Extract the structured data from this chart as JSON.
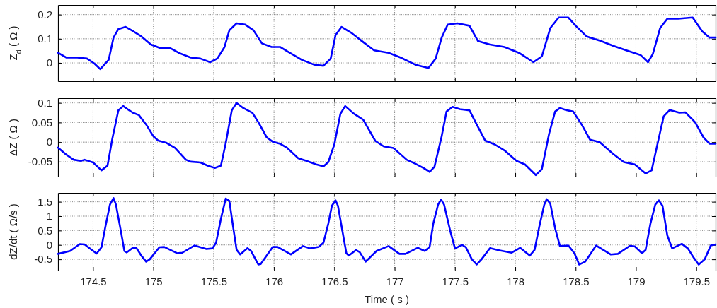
{
  "chart_data": [
    {
      "type": "line",
      "ylabel": "Z$_{d}$ ( Ω )",
      "color": "#0000ff",
      "grid": true,
      "tick_labels": "y",
      "xlim": [
        174.21,
        179.66
      ],
      "xticks": [
        174.5,
        175,
        175.5,
        176,
        176.5,
        177,
        177.5,
        178,
        178.5,
        179,
        179.5
      ],
      "ylim": [
        -0.076,
        0.24
      ],
      "yticks": [
        0,
        0.1,
        0.2
      ],
      "x": [
        174.21,
        174.28,
        174.37,
        174.45,
        174.51,
        174.56,
        174.63,
        174.67,
        174.71,
        174.77,
        174.82,
        174.9,
        174.98,
        175.06,
        175.14,
        175.21,
        175.31,
        175.39,
        175.47,
        175.53,
        175.59,
        175.63,
        175.69,
        175.76,
        175.83,
        175.9,
        175.98,
        176.05,
        176.13,
        176.23,
        176.33,
        176.41,
        176.47,
        176.51,
        176.56,
        176.64,
        176.74,
        176.83,
        176.95,
        177.05,
        177.17,
        177.28,
        177.34,
        177.39,
        177.44,
        177.52,
        177.62,
        177.69,
        177.79,
        177.91,
        178.03,
        178.15,
        178.22,
        178.29,
        178.36,
        178.44,
        178.5,
        178.59,
        178.71,
        178.81,
        178.92,
        179.04,
        179.1,
        179.14,
        179.2,
        179.26,
        179.35,
        179.47,
        179.55,
        179.61,
        179.66
      ],
      "values": [
        0.042,
        0.022,
        0.022,
        0.018,
        -0.002,
        -0.026,
        0.013,
        0.105,
        0.14,
        0.149,
        0.135,
        0.11,
        0.076,
        0.061,
        0.061,
        0.042,
        0.022,
        0.018,
        0.003,
        0.018,
        0.066,
        0.135,
        0.164,
        0.159,
        0.135,
        0.081,
        0.066,
        0.066,
        0.042,
        0.013,
        -0.007,
        -0.012,
        0.018,
        0.115,
        0.149,
        0.125,
        0.086,
        0.052,
        0.042,
        0.022,
        -0.007,
        -0.021,
        0.018,
        0.105,
        0.159,
        0.164,
        0.154,
        0.091,
        0.076,
        0.066,
        0.042,
        0.003,
        0.027,
        0.144,
        0.188,
        0.188,
        0.154,
        0.11,
        0.091,
        0.071,
        0.052,
        0.032,
        0.003,
        0.037,
        0.144,
        0.183,
        0.183,
        0.188,
        0.13,
        0.105,
        0.105
      ]
    },
    {
      "type": "line",
      "ylabel": "ΔZ ( Ω )",
      "color": "#0000ff",
      "grid": true,
      "tick_labels": "y",
      "xlim": [
        174.21,
        179.66
      ],
      "xticks": [
        174.5,
        175,
        175.5,
        176,
        176.5,
        177,
        177.5,
        178,
        178.5,
        179,
        179.5
      ],
      "ylim": [
        -0.088,
        0.112
      ],
      "yticks": [
        -0.05,
        0,
        0.05,
        0.1
      ],
      "x": [
        174.21,
        174.27,
        174.34,
        174.4,
        174.43,
        174.5,
        174.57,
        174.62,
        174.66,
        174.71,
        174.75,
        174.8,
        174.83,
        174.88,
        174.94,
        175,
        175.04,
        175.11,
        175.18,
        175.27,
        175.31,
        175.39,
        175.45,
        175.51,
        175.56,
        175.6,
        175.65,
        175.69,
        175.74,
        175.82,
        175.87,
        175.94,
        175.99,
        176.05,
        176.11,
        176.2,
        176.27,
        176.35,
        176.41,
        176.45,
        176.5,
        176.55,
        176.59,
        176.66,
        176.74,
        176.84,
        176.91,
        176.99,
        177.1,
        177.17,
        177.24,
        177.29,
        177.33,
        177.39,
        177.43,
        177.48,
        177.54,
        177.62,
        177.68,
        177.75,
        177.83,
        177.91,
        178.01,
        178.08,
        178.17,
        178.22,
        178.28,
        178.33,
        178.37,
        178.42,
        178.48,
        178.55,
        178.62,
        178.7,
        178.81,
        178.9,
        178.99,
        179.08,
        179.13,
        179.18,
        179.23,
        179.28,
        179.36,
        179.41,
        179.49,
        179.56,
        179.61,
        179.66
      ],
      "values": [
        -0.014,
        -0.03,
        -0.045,
        -0.048,
        -0.045,
        -0.052,
        -0.072,
        -0.06,
        0.009,
        0.081,
        0.092,
        0.081,
        0.075,
        0.069,
        0.045,
        0.015,
        0.004,
        -0.002,
        -0.015,
        -0.045,
        -0.05,
        -0.052,
        -0.06,
        -0.066,
        -0.06,
        -0.003,
        0.081,
        0.1,
        0.088,
        0.075,
        0.051,
        0.012,
        0.001,
        -0.004,
        -0.015,
        -0.041,
        -0.048,
        -0.057,
        -0.062,
        -0.051,
        -0.006,
        0.072,
        0.092,
        0.073,
        0.057,
        0.003,
        -0.011,
        -0.015,
        -0.045,
        -0.055,
        -0.066,
        -0.076,
        -0.063,
        0.015,
        0.078,
        0.09,
        0.084,
        0.081,
        0.045,
        0.004,
        -0.006,
        -0.021,
        -0.048,
        -0.057,
        -0.084,
        -0.069,
        0.021,
        0.078,
        0.087,
        0.082,
        0.078,
        0.045,
        0.006,
        0,
        -0.03,
        -0.051,
        -0.057,
        -0.08,
        -0.072,
        -0.003,
        0.066,
        0.082,
        0.075,
        0.076,
        0.051,
        0.012,
        -0.004,
        -0.004
      ]
    },
    {
      "type": "line",
      "xlabel": "Time ( s )",
      "ylabel": "dZ/dt ( Ω/s )",
      "color": "#0000ff",
      "grid": true,
      "xlim": [
        174.21,
        179.66
      ],
      "xticks": [
        174.5,
        175,
        175.5,
        176,
        176.5,
        177,
        177.5,
        178,
        178.5,
        179,
        179.5
      ],
      "ylim": [
        -0.89,
        1.81
      ],
      "yticks": [
        -0.5,
        0,
        0.5,
        1,
        1.5
      ],
      "x": [
        174.21,
        174.31,
        174.39,
        174.43,
        174.53,
        174.57,
        174.6,
        174.64,
        174.67,
        174.69,
        174.73,
        174.76,
        174.78,
        174.83,
        174.86,
        174.9,
        174.94,
        174.97,
        175.05,
        175.09,
        175.2,
        175.24,
        175.34,
        175.44,
        175.49,
        175.52,
        175.56,
        175.6,
        175.63,
        175.66,
        175.69,
        175.72,
        175.78,
        175.81,
        175.87,
        175.89,
        175.99,
        176.03,
        176.14,
        176.24,
        176.3,
        176.37,
        176.41,
        176.45,
        176.48,
        176.51,
        176.53,
        176.57,
        176.6,
        176.62,
        176.68,
        176.71,
        176.76,
        176.85,
        176.95,
        177.04,
        177.09,
        177.19,
        177.25,
        177.29,
        177.32,
        177.36,
        177.385,
        177.41,
        177.46,
        177.5,
        177.56,
        177.59,
        177.64,
        177.68,
        177.72,
        177.79,
        177.87,
        177.97,
        178.04,
        178.12,
        178.16,
        178.2,
        178.24,
        178.26,
        178.29,
        178.33,
        178.37,
        178.44,
        178.49,
        178.53,
        178.58,
        178.67,
        178.79,
        178.85,
        178.95,
        178.99,
        179.05,
        179.08,
        179.12,
        179.16,
        179.19,
        179.22,
        179.26,
        179.3,
        179.38,
        179.43,
        179.48,
        179.52,
        179.57,
        179.62,
        179.66
      ],
      "values": [
        -0.31,
        -0.21,
        0.03,
        0.02,
        -0.3,
        -0.08,
        0.58,
        1.4,
        1.63,
        1.4,
        0.5,
        -0.21,
        -0.26,
        -0.1,
        -0.11,
        -0.37,
        -0.58,
        -0.5,
        -0.08,
        -0.07,
        -0.29,
        -0.27,
        -0.02,
        -0.14,
        -0.12,
        0.08,
        0.91,
        1.61,
        1.53,
        0.66,
        -0.17,
        -0.33,
        -0.11,
        -0.21,
        -0.68,
        -0.66,
        -0.07,
        -0.07,
        -0.33,
        -0.04,
        -0.12,
        -0.07,
        0.08,
        0.74,
        1.36,
        1.55,
        1.36,
        0.41,
        -0.29,
        -0.37,
        -0.18,
        -0.25,
        -0.58,
        -0.21,
        -0.04,
        -0.31,
        -0.31,
        -0.1,
        -0.21,
        -0.07,
        0.74,
        1.4,
        1.58,
        1.4,
        0.5,
        -0.12,
        0,
        -0.08,
        -0.5,
        -0.68,
        -0.5,
        -0.11,
        -0.19,
        -0.27,
        -0.1,
        -0.37,
        -0.17,
        0.66,
        1.4,
        1.59,
        1.44,
        0.58,
        -0.04,
        -0.02,
        -0.29,
        -0.68,
        -0.58,
        -0.02,
        -0.33,
        -0.31,
        -0.03,
        -0.05,
        -0.29,
        -0.17,
        0.74,
        1.4,
        1.55,
        1.36,
        0.33,
        -0.12,
        0.04,
        -0.12,
        -0.45,
        -0.68,
        -0.5,
        -0.02,
        0.02
      ]
    }
  ]
}
